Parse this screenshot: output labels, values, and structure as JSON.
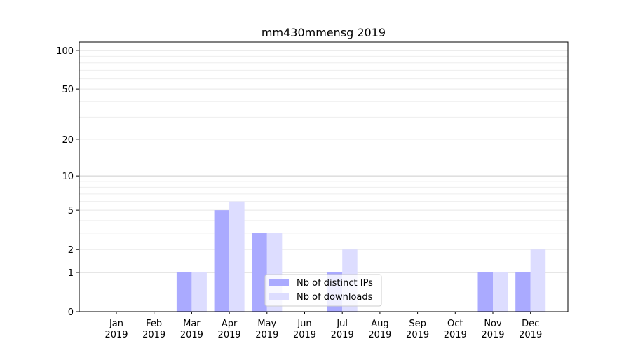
{
  "chart_data": {
    "type": "bar",
    "title": "mm430mmensg 2019",
    "xlabel": "",
    "ylabel": "",
    "yscale": "symlog (log of 1+y)",
    "ylim": [
      0,
      116
    ],
    "yticks": [
      0,
      1,
      2,
      5,
      10,
      20,
      50,
      100
    ],
    "categories": [
      "Jan\n2019",
      "Feb\n2019",
      "Mar\n2019",
      "Apr\n2019",
      "May\n2019",
      "Jun\n2019",
      "Jul\n2019",
      "Aug\n2019",
      "Sep\n2019",
      "Oct\n2019",
      "Nov\n2019",
      "Dec\n2019"
    ],
    "series": [
      {
        "name": "Nb of distinct IPs",
        "color": "#aaaaff",
        "values": [
          0,
          0,
          1,
          5,
          3,
          0,
          1,
          0,
          0,
          0,
          1,
          1
        ]
      },
      {
        "name": "Nb of downloads",
        "color": "#ddddff",
        "values": [
          0,
          0,
          1,
          6,
          3,
          0,
          2,
          0,
          0,
          0,
          1,
          2
        ]
      }
    ],
    "grid": true,
    "legend": "lower-center"
  }
}
